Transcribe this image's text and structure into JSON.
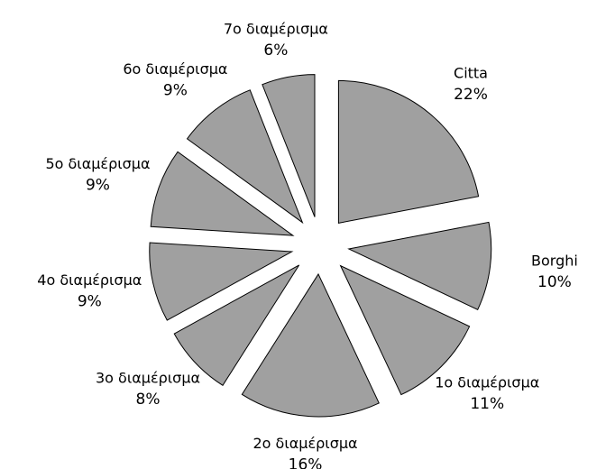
{
  "chart_data": {
    "type": "pie",
    "categories": [
      "Citta",
      "Borghi",
      "1ο διαμέρισμα",
      "2ο διαμέρισμα",
      "3ο διαμέρισμα",
      "4ο διαμέρισμα",
      "5ο διαμέρισμα",
      "6ο διαμέρισμα",
      "7ο διαμέρισμα"
    ],
    "values": [
      22,
      10,
      11,
      16,
      8,
      9,
      9,
      9,
      6
    ],
    "value_labels": [
      "22%",
      "10%",
      "11%",
      "16%",
      "8%",
      "9%",
      "9%",
      "9%",
      "6%"
    ],
    "color": "#a0a0a0"
  }
}
